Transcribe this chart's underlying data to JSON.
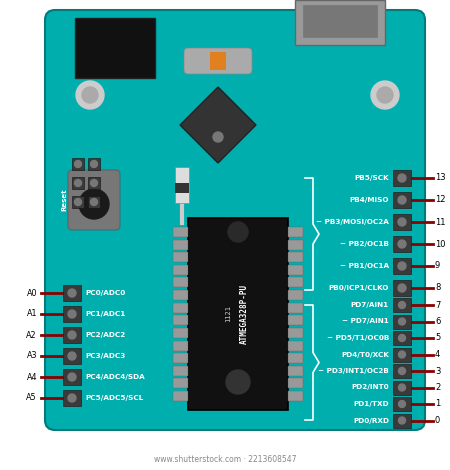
{
  "board_color": "#00AEAE",
  "board_outline": "#007A7A",
  "bg_color": "#ffffff",
  "pin_connector_color": "#3a3a3a",
  "chip_color": "#111111",
  "chip_text": "ATMEGA328P-PU",
  "chip_year": "1121",
  "reset_text": "Reset",
  "resistor_color_body": "#E08020",
  "right_labels_upper": [
    "PB5/SCK",
    "PB4/MISO",
    "~ PB3/MOSI/OC2A",
    "~ PB2/OC1B",
    "~ PB1/OC1A",
    "PB0/ICP1/CLKO"
  ],
  "right_numbers_upper": [
    "13",
    "12",
    "11",
    "10",
    "9",
    "8"
  ],
  "right_labels_lower": [
    "PD7/AIN1",
    "~ PD7/AIN1",
    "~ PD5/T1/OC0B",
    "PD4/T0/XCK",
    "~ PD3/INT1/OC2B",
    "PD2/INT0",
    "PD1/TXD",
    "PD0/RXD"
  ],
  "right_numbers_lower": [
    "7",
    "6",
    "5",
    "4",
    "3",
    "2",
    "1",
    "0"
  ],
  "left_labels": [
    "PC0/ADC0",
    "PC1/ADC1",
    "PC2/ADC2",
    "PC3/ADC3",
    "PC4/ADC4/SDA",
    "PC5/ADC5/SCL"
  ],
  "left_names": [
    "A0",
    "A1",
    "A2",
    "A3",
    "A4",
    "A5"
  ],
  "label_color": "#ffffff",
  "number_color": "#000000",
  "wire_color": "#8B0000",
  "font_size_label": 5.2,
  "font_size_number": 6.0,
  "font_size_pin": 5.8,
  "watermark": "www.shutterstock.com · 2213608547"
}
